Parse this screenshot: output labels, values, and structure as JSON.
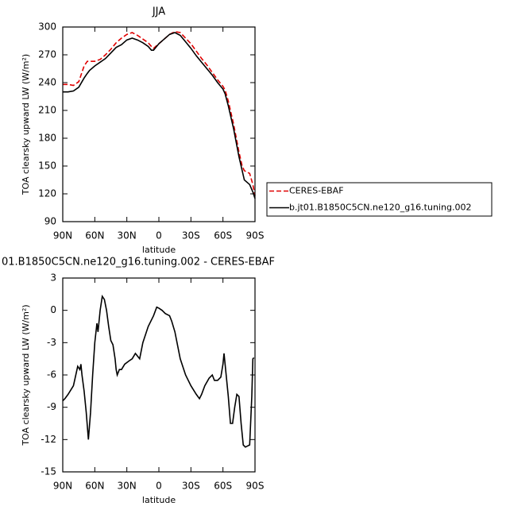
{
  "chart_data": [
    {
      "type": "line",
      "title": "JJA",
      "xlabel": "latitude",
      "ylabel": "TOA clearsky upward LW (W/m²)",
      "x": [
        90,
        85,
        80,
        75,
        70,
        67,
        65,
        60,
        55,
        50,
        45,
        40,
        35,
        30,
        25,
        20,
        15,
        10,
        7,
        5,
        0,
        -5,
        -10,
        -15,
        -20,
        -25,
        -30,
        -35,
        -40,
        -45,
        -50,
        -55,
        -60,
        -62,
        -65,
        -70,
        -75,
        -78,
        -80,
        -85,
        -88,
        -90
      ],
      "series": [
        {
          "name": "CERES-EBAF",
          "color": "#e00000",
          "linestyle": "dashed",
          "values": [
            238,
            238,
            237,
            241,
            258,
            263,
            263,
            263,
            265,
            270,
            276,
            283,
            288,
            292,
            294,
            291,
            287,
            283,
            279,
            277,
            282,
            287,
            292,
            295,
            294,
            288,
            282,
            274,
            266,
            259,
            251,
            243,
            236,
            232,
            220,
            195,
            165,
            150,
            145,
            142,
            130,
            118
          ]
        },
        {
          "name": "b.jt01.B1850C5CN.ne120_g16.tuning.002",
          "color": "#000000",
          "linestyle": "solid",
          "values": [
            230,
            230,
            231,
            235,
            245,
            250,
            253,
            258,
            262,
            266,
            272,
            278,
            281,
            286,
            288,
            286,
            283,
            279,
            275,
            275,
            282,
            287,
            292,
            294,
            291,
            284,
            277,
            269,
            262,
            255,
            248,
            240,
            233,
            228,
            215,
            190,
            160,
            145,
            135,
            130,
            122,
            115
          ]
        }
      ],
      "xlim": [
        90,
        -90
      ],
      "xticks": [
        {
          "value": 90,
          "label": "90N"
        },
        {
          "value": 60,
          "label": "60N"
        },
        {
          "value": 30,
          "label": "30N"
        },
        0,
        {
          "value": -30,
          "label": "30S"
        },
        {
          "value": -60,
          "label": "60S"
        },
        {
          "value": -90,
          "label": "90S"
        }
      ],
      "ylim": [
        90,
        300
      ],
      "yticks": [
        90,
        120,
        150,
        180,
        210,
        240,
        270,
        300
      ],
      "legend": "right"
    },
    {
      "type": "line",
      "title": "01.B1850C5CN.ne120_g16.tuning.002 - CERES-EBAF",
      "xlabel": "latitude",
      "ylabel": "TOA clearsky upward LW (W/m²)",
      "x": [
        90,
        88,
        85,
        80,
        76,
        74,
        73,
        72,
        70,
        68,
        66,
        64,
        62,
        60,
        58,
        57,
        55,
        53,
        51,
        49,
        47,
        45,
        43,
        41,
        40,
        39,
        37,
        35,
        32,
        28,
        25,
        22,
        18,
        15,
        10,
        5,
        2,
        0,
        -3,
        -6,
        -10,
        -12,
        -15,
        -20,
        -25,
        -30,
        -35,
        -38,
        -40,
        -43,
        -47,
        -50,
        -52,
        -55,
        -58,
        -60,
        -61,
        -63,
        -65,
        -67,
        -69,
        -71,
        -73,
        -75,
        -77,
        -79,
        -81,
        -83,
        -85,
        -87,
        -88,
        -89
      ],
      "series": [
        {
          "color": "#000000",
          "linestyle": "solid",
          "values": [
            -8.4,
            -8.2,
            -7.8,
            -7.0,
            -5.2,
            -5.5,
            -5.0,
            -6.0,
            -7.5,
            -9.5,
            -12.0,
            -9.5,
            -6.0,
            -3.0,
            -1.2,
            -2.0,
            0.0,
            1.3,
            1.0,
            0.0,
            -1.5,
            -2.8,
            -3.2,
            -4.5,
            -5.5,
            -6.0,
            -5.5,
            -5.5,
            -5.0,
            -4.7,
            -4.5,
            -4.0,
            -4.5,
            -3.0,
            -1.5,
            -0.5,
            0.3,
            0.2,
            0.0,
            -0.3,
            -0.5,
            -1.0,
            -2.0,
            -4.5,
            -6.0,
            -7.0,
            -7.8,
            -8.2,
            -7.8,
            -7.0,
            -6.3,
            -6.0,
            -6.5,
            -6.5,
            -6.2,
            -5.0,
            -4.0,
            -6.0,
            -8.0,
            -10.5,
            -10.5,
            -9.0,
            -7.8,
            -8.0,
            -10.5,
            -12.5,
            -12.7,
            -12.6,
            -12.5,
            -8.0,
            -4.5,
            -4.4
          ]
        }
      ],
      "xlim": [
        90,
        -90
      ],
      "xticks": [
        {
          "value": 90,
          "label": "90N"
        },
        {
          "value": 60,
          "label": "60N"
        },
        {
          "value": 30,
          "label": "30N"
        },
        0,
        {
          "value": -30,
          "label": "30S"
        },
        {
          "value": -60,
          "label": "60S"
        },
        {
          "value": -90,
          "label": "90S"
        }
      ],
      "ylim": [
        -15,
        3
      ],
      "yticks": [
        3,
        0,
        -3,
        -6,
        -9,
        -12,
        -15
      ]
    }
  ]
}
